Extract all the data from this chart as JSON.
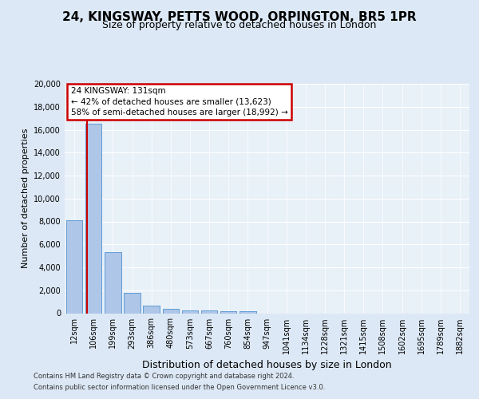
{
  "title1": "24, KINGSWAY, PETTS WOOD, ORPINGTON, BR5 1PR",
  "title2": "Size of property relative to detached houses in London",
  "xlabel": "Distribution of detached houses by size in London",
  "ylabel": "Number of detached properties",
  "categories": [
    "12sqm",
    "106sqm",
    "199sqm",
    "293sqm",
    "386sqm",
    "480sqm",
    "573sqm",
    "667sqm",
    "760sqm",
    "854sqm",
    "947sqm",
    "1041sqm",
    "1134sqm",
    "1228sqm",
    "1321sqm",
    "1415sqm",
    "1508sqm",
    "1602sqm",
    "1695sqm",
    "1789sqm",
    "1882sqm"
  ],
  "values": [
    8100,
    16500,
    5300,
    1750,
    650,
    350,
    270,
    220,
    180,
    150,
    0,
    0,
    0,
    0,
    0,
    0,
    0,
    0,
    0,
    0,
    0
  ],
  "bar_color": "#aec6e8",
  "bar_edge_color": "#5b9bd5",
  "vline_x": 0.65,
  "annotation_line1": "24 KINGSWAY: 131sqm",
  "annotation_line2": "← 42% of detached houses are smaller (13,623)",
  "annotation_line3": "58% of semi-detached houses are larger (18,992) →",
  "annotation_box_color": "#ffffff",
  "annotation_box_edge": "#cc0000",
  "vline_color": "#cc0000",
  "ylim_max": 20000,
  "yticks": [
    0,
    2000,
    4000,
    6000,
    8000,
    10000,
    12000,
    14000,
    16000,
    18000,
    20000
  ],
  "footer1": "Contains HM Land Registry data © Crown copyright and database right 2024.",
  "footer2": "Contains public sector information licensed under the Open Government Licence v3.0.",
  "bg_color": "#dce8f5",
  "plot_bg_color": "#e8f0f8",
  "grid_color": "#ffffff",
  "title_fontsize": 11,
  "subtitle_fontsize": 9,
  "ylabel_fontsize": 8,
  "xlabel_fontsize": 9,
  "tick_fontsize": 7,
  "footer_fontsize": 6,
  "ann_fontsize": 7.5
}
